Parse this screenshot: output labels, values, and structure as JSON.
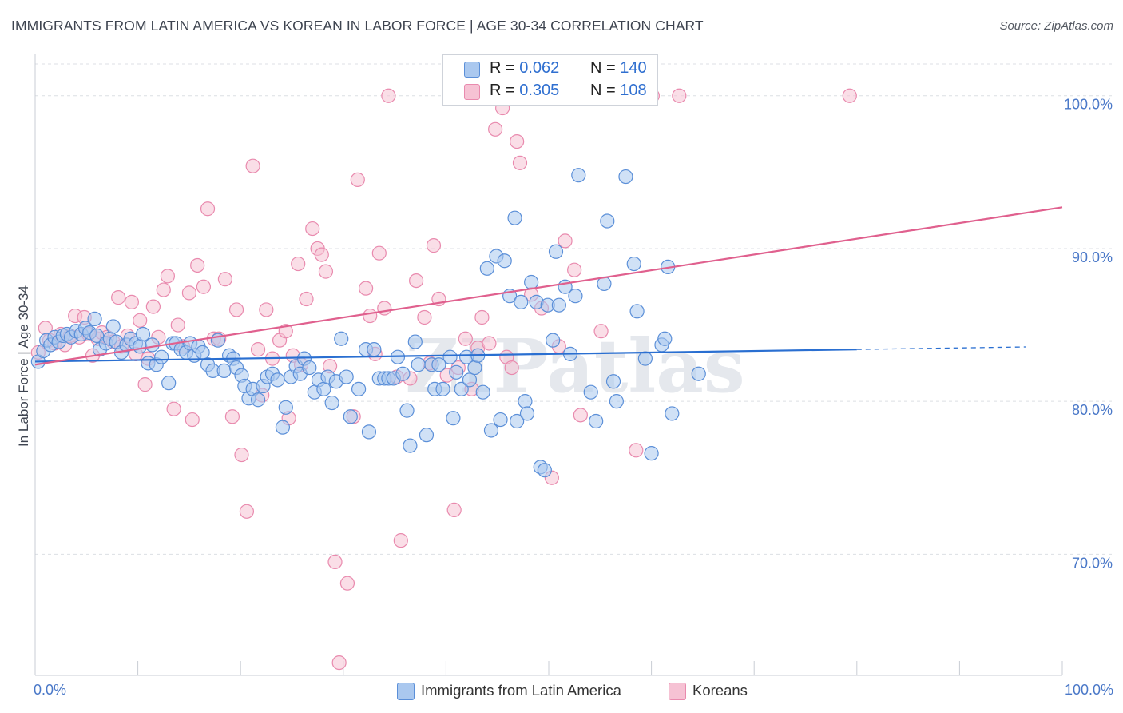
{
  "title": "IMMIGRANTS FROM LATIN AMERICA VS KOREAN IN LABOR FORCE | AGE 30-34 CORRELATION CHART",
  "source": "Source: ZipAtlas.com",
  "watermark": "ZIPatlas",
  "colors": {
    "blue_fill": "#aac8ef",
    "blue_stroke": "#5b8fd8",
    "blue_line": "#2a6fd1",
    "pink_fill": "#f6c2d4",
    "pink_stroke": "#e98aae",
    "pink_line": "#e0608e",
    "axis_text": "#4a78c8",
    "grid": "#dcdfe4"
  },
  "legend_top": [
    {
      "r_label": "R =",
      "r_value": "0.062",
      "n_label": "N =",
      "n_value": "140",
      "color": "blue"
    },
    {
      "r_label": "R =",
      "r_value": "0.305",
      "n_label": "N =",
      "n_value": "108",
      "color": "pink"
    }
  ],
  "legend_bottom": [
    "Immigrants from Latin America",
    "Koreans"
  ],
  "chart_data": {
    "type": "scatter",
    "title": "IMMIGRANTS FROM LATIN AMERICA VS KOREAN IN LABOR FORCE | AGE 30-34 CORRELATION CHART",
    "xlabel": "",
    "ylabel": "In Labor Force | Age 30-34",
    "xlim": [
      0,
      100
    ],
    "ylim": [
      62,
      101.5
    ],
    "x_tick_labels": [
      "0.0%",
      "100.0%"
    ],
    "y_ticks": [
      70,
      80,
      90,
      100
    ],
    "y_tick_labels": [
      "70.0%",
      "80.0%",
      "90.0%",
      "100.0%"
    ],
    "grid": "horizontal dashed",
    "legend_position": "top-center",
    "series": [
      {
        "name": "Immigrants from Latin America",
        "color": "#5b8fd8",
        "R": 0.062,
        "N": 140,
        "trend": {
          "x": [
            0,
            80
          ],
          "y": [
            82.6,
            83.4
          ],
          "dashed_extension_to": 82
        },
        "points": [
          [
            0.3,
            82.6
          ],
          [
            0.8,
            83.3
          ],
          [
            1.1,
            84
          ],
          [
            1.5,
            83.7
          ],
          [
            1.9,
            84.2
          ],
          [
            2.3,
            83.9
          ],
          [
            2.7,
            84.3
          ],
          [
            3.1,
            84.4
          ],
          [
            3.5,
            84.2
          ],
          [
            4,
            84.6
          ],
          [
            4.5,
            84.4
          ],
          [
            4.9,
            84.8
          ],
          [
            5.3,
            84.5
          ],
          [
            5.8,
            85.4
          ],
          [
            6,
            84.3
          ],
          [
            6.3,
            83.4
          ],
          [
            6.9,
            83.8
          ],
          [
            7.3,
            84.1
          ],
          [
            7.6,
            84.9
          ],
          [
            7.9,
            83.9
          ],
          [
            8.4,
            83.2
          ],
          [
            8.9,
            83.7
          ],
          [
            9.3,
            84.1
          ],
          [
            9.8,
            83.8
          ],
          [
            10.2,
            83.6
          ],
          [
            10.5,
            84.4
          ],
          [
            11,
            82.5
          ],
          [
            11.4,
            83.7
          ],
          [
            11.8,
            82.4
          ],
          [
            12.3,
            82.9
          ],
          [
            13,
            81.2
          ],
          [
            13.4,
            83.8
          ],
          [
            13.7,
            83.8
          ],
          [
            14.2,
            83.4
          ],
          [
            14.7,
            83.2
          ],
          [
            15.1,
            83.8
          ],
          [
            15.5,
            83
          ],
          [
            15.9,
            83.6
          ],
          [
            16.3,
            83.2
          ],
          [
            16.8,
            82.4
          ],
          [
            17.3,
            82
          ],
          [
            17.8,
            84
          ],
          [
            18.4,
            82
          ],
          [
            18.9,
            83
          ],
          [
            19.3,
            82.8
          ],
          [
            19.6,
            82.2
          ],
          [
            20.1,
            81.7
          ],
          [
            20.4,
            81
          ],
          [
            20.8,
            80.2
          ],
          [
            21.2,
            80.8
          ],
          [
            21.7,
            80.1
          ],
          [
            22.2,
            81
          ],
          [
            22.6,
            81.6
          ],
          [
            23.1,
            81.8
          ],
          [
            23.6,
            81.4
          ],
          [
            24.1,
            78.3
          ],
          [
            24.4,
            79.6
          ],
          [
            24.9,
            81.6
          ],
          [
            25.4,
            82.3
          ],
          [
            25.8,
            81.8
          ],
          [
            26.2,
            82.8
          ],
          [
            26.7,
            82.2
          ],
          [
            27.2,
            80.6
          ],
          [
            27.6,
            81.4
          ],
          [
            28.1,
            80.8
          ],
          [
            28.5,
            81.6
          ],
          [
            28.9,
            79.9
          ],
          [
            29.3,
            81.3
          ],
          [
            29.8,
            84.1
          ],
          [
            30.3,
            81.6
          ],
          [
            30.7,
            79
          ],
          [
            31.5,
            80.8
          ],
          [
            32.2,
            83.4
          ],
          [
            32.5,
            78
          ],
          [
            33,
            83.4
          ],
          [
            33.5,
            81.5
          ],
          [
            34,
            81.5
          ],
          [
            34.4,
            81.5
          ],
          [
            34.9,
            81.5
          ],
          [
            35.3,
            82.9
          ],
          [
            35.8,
            81.8
          ],
          [
            36.2,
            79.4
          ],
          [
            36.5,
            77.1
          ],
          [
            37,
            83.9
          ],
          [
            37.3,
            82.4
          ],
          [
            38.1,
            77.8
          ],
          [
            38.6,
            82.4
          ],
          [
            38.9,
            80.8
          ],
          [
            39.3,
            82.4
          ],
          [
            39.7,
            80.8
          ],
          [
            40.4,
            82.9
          ],
          [
            40.7,
            78.9
          ],
          [
            41,
            81.9
          ],
          [
            41.5,
            80.8
          ],
          [
            42,
            82.9
          ],
          [
            42.3,
            81.4
          ],
          [
            42.8,
            82.2
          ],
          [
            43.1,
            83
          ],
          [
            43.6,
            80.6
          ],
          [
            44,
            88.7
          ],
          [
            44.4,
            78.1
          ],
          [
            44.9,
            89.5
          ],
          [
            45.3,
            78.8
          ],
          [
            45.7,
            89.2
          ],
          [
            46.2,
            86.9
          ],
          [
            46.7,
            92
          ],
          [
            46.9,
            78.7
          ],
          [
            47.3,
            86.5
          ],
          [
            47.7,
            80
          ],
          [
            47.9,
            79.2
          ],
          [
            48.3,
            87.8
          ],
          [
            48.8,
            86.5
          ],
          [
            49.2,
            75.7
          ],
          [
            49.6,
            75.5
          ],
          [
            49.9,
            86.3
          ],
          [
            50.4,
            84
          ],
          [
            50.7,
            89.8
          ],
          [
            51,
            86.3
          ],
          [
            51.6,
            87.5
          ],
          [
            52.1,
            83.1
          ],
          [
            52.6,
            86.9
          ],
          [
            52.9,
            94.8
          ],
          [
            54.1,
            80.6
          ],
          [
            54.6,
            78.7
          ],
          [
            55.4,
            87.7
          ],
          [
            55.7,
            91.8
          ],
          [
            56.3,
            81.3
          ],
          [
            56.6,
            80
          ],
          [
            57.5,
            94.7
          ],
          [
            58.3,
            89
          ],
          [
            58.6,
            85.9
          ],
          [
            59.4,
            82.8
          ],
          [
            60,
            76.6
          ],
          [
            61,
            83.7
          ],
          [
            61.3,
            84.1
          ],
          [
            61.6,
            88.8
          ],
          [
            62,
            79.2
          ],
          [
            64.6,
            81.8
          ]
        ]
      },
      {
        "name": "Koreans",
        "color": "#e98aae",
        "R": 0.305,
        "N": 108,
        "trend": {
          "x": [
            0,
            100
          ],
          "y": [
            82.4,
            92.7
          ]
        },
        "points": [
          [
            0.3,
            83.2
          ],
          [
            1,
            84.8
          ],
          [
            1.4,
            84
          ],
          [
            1.9,
            83.8
          ],
          [
            2.5,
            84.4
          ],
          [
            2.9,
            83.7
          ],
          [
            3.4,
            84.3
          ],
          [
            3.9,
            85.6
          ],
          [
            4.3,
            84.2
          ],
          [
            4.8,
            85.5
          ],
          [
            5.2,
            84.4
          ],
          [
            5.6,
            83
          ],
          [
            6.1,
            84.1
          ],
          [
            6.5,
            84.5
          ],
          [
            7,
            84.2
          ],
          [
            7.6,
            83.9
          ],
          [
            8.1,
            86.8
          ],
          [
            8.4,
            83.6
          ],
          [
            9,
            84.3
          ],
          [
            9.4,
            86.5
          ],
          [
            9.8,
            83.1
          ],
          [
            10.2,
            85.3
          ],
          [
            10.7,
            81.1
          ],
          [
            11,
            82.8
          ],
          [
            11.5,
            86.2
          ],
          [
            12,
            84.2
          ],
          [
            12.5,
            87.3
          ],
          [
            12.9,
            88.2
          ],
          [
            13.5,
            79.5
          ],
          [
            13.9,
            85
          ],
          [
            14.4,
            83.6
          ],
          [
            15,
            87.1
          ],
          [
            15.3,
            78.8
          ],
          [
            15.8,
            88.9
          ],
          [
            16.4,
            87.5
          ],
          [
            16.8,
            92.6
          ],
          [
            17.4,
            84.1
          ],
          [
            17.9,
            84.1
          ],
          [
            18.5,
            88
          ],
          [
            19.2,
            79
          ],
          [
            19.6,
            86
          ],
          [
            20.1,
            76.5
          ],
          [
            20.6,
            72.8
          ],
          [
            21.2,
            95.4
          ],
          [
            21.7,
            83.4
          ],
          [
            22.1,
            80.4
          ],
          [
            22.5,
            86
          ],
          [
            23.1,
            82.8
          ],
          [
            23.8,
            84
          ],
          [
            24.4,
            84.6
          ],
          [
            24.7,
            78.9
          ],
          [
            25.1,
            83
          ],
          [
            25.6,
            89
          ],
          [
            25.9,
            82.4
          ],
          [
            26.4,
            86.7
          ],
          [
            27,
            91.3
          ],
          [
            27.5,
            90
          ],
          [
            27.9,
            89.6
          ],
          [
            28.3,
            88.5
          ],
          [
            28.7,
            82.3
          ],
          [
            29.2,
            69.5
          ],
          [
            29.6,
            62.9
          ],
          [
            30.4,
            68.1
          ],
          [
            31,
            79
          ],
          [
            31.4,
            94.5
          ],
          [
            32.2,
            87.4
          ],
          [
            32.6,
            85.6
          ],
          [
            33.1,
            83.1
          ],
          [
            33.5,
            89.7
          ],
          [
            34,
            86.1
          ],
          [
            34.4,
            100
          ],
          [
            35.2,
            81.6
          ],
          [
            35.6,
            70.9
          ],
          [
            36.5,
            81.5
          ],
          [
            37.1,
            87.9
          ],
          [
            37.9,
            85.5
          ],
          [
            38.4,
            82.5
          ],
          [
            38.8,
            90.2
          ],
          [
            39.3,
            86.7
          ],
          [
            40.1,
            81.7
          ],
          [
            40.8,
            72.9
          ],
          [
            41.2,
            82.2
          ],
          [
            41.9,
            84.1
          ],
          [
            42.5,
            80.8
          ],
          [
            43.1,
            83.5
          ],
          [
            43.5,
            85.5
          ],
          [
            44.2,
            83.8
          ],
          [
            44.8,
            97.8
          ],
          [
            45.5,
            99.2
          ],
          [
            45.9,
            82.9
          ],
          [
            46.4,
            82.2
          ],
          [
            46.9,
            97
          ],
          [
            47.2,
            95.6
          ],
          [
            48.3,
            87
          ],
          [
            49.3,
            86.1
          ],
          [
            50.3,
            75
          ],
          [
            51,
            83.6
          ],
          [
            51.6,
            90.5
          ],
          [
            52.5,
            88.6
          ],
          [
            53.1,
            79.1
          ],
          [
            54.6,
            100
          ],
          [
            55.1,
            84.6
          ],
          [
            56.3,
            100
          ],
          [
            58.5,
            76.8
          ],
          [
            59.5,
            100
          ],
          [
            60.1,
            100
          ],
          [
            62.7,
            100
          ],
          [
            79.3,
            100
          ]
        ]
      }
    ]
  }
}
